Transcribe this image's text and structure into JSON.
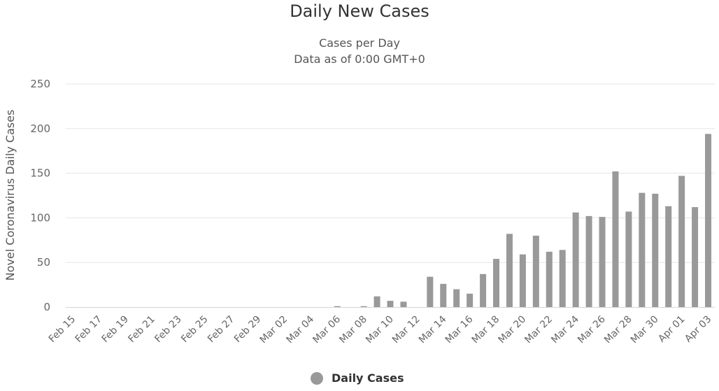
{
  "chart_data": {
    "type": "bar",
    "title": "Daily New Cases",
    "subtitle": [
      "Cases per Day",
      "Data as of 0:00 GMT+0"
    ],
    "ylabel": "Novel Coronavirus Daily Cases",
    "xlabel": "",
    "ylim": [
      0,
      250
    ],
    "yticks": [
      0,
      50,
      100,
      150,
      200,
      250
    ],
    "grid": true,
    "legend": "bottom-center",
    "colors": {
      "bar": "#999999",
      "grid": "#e6e6e6",
      "axis": "#ccd6eb"
    },
    "categories": [
      "Feb 15",
      "Feb 16",
      "Feb 17",
      "Feb 18",
      "Feb 19",
      "Feb 20",
      "Feb 21",
      "Feb 22",
      "Feb 23",
      "Feb 24",
      "Feb 25",
      "Feb 26",
      "Feb 27",
      "Feb 28",
      "Feb 29",
      "Mar 01",
      "Mar 02",
      "Mar 03",
      "Mar 04",
      "Mar 05",
      "Mar 06",
      "Mar 07",
      "Mar 08",
      "Mar 09",
      "Mar 10",
      "Mar 11",
      "Mar 12",
      "Mar 13",
      "Mar 14",
      "Mar 15",
      "Mar 16",
      "Mar 17",
      "Mar 18",
      "Mar 19",
      "Mar 20",
      "Mar 21",
      "Mar 22",
      "Mar 23",
      "Mar 24",
      "Mar 25",
      "Mar 26",
      "Mar 27",
      "Mar 28",
      "Mar 29",
      "Mar 30",
      "Mar 31",
      "Apr 01",
      "Apr 02",
      "Apr 03"
    ],
    "tick_labels": [
      "Feb 15",
      "Feb 17",
      "Feb 19",
      "Feb 21",
      "Feb 23",
      "Feb 25",
      "Feb 27",
      "Feb 29",
      "Mar 02",
      "Mar 04",
      "Mar 06",
      "Mar 08",
      "Mar 10",
      "Mar 12",
      "Mar 14",
      "Mar 16",
      "Mar 18",
      "Mar 20",
      "Mar 22",
      "Mar 24",
      "Mar 26",
      "Mar 28",
      "Mar 30",
      "Apr 01",
      "Apr 03"
    ],
    "series": [
      {
        "name": "Daily Cases",
        "values": [
          0,
          0,
          0,
          0,
          0,
          0,
          0,
          0,
          0,
          0,
          0,
          0,
          0,
          0,
          0,
          0,
          0,
          0,
          0,
          0,
          1,
          0,
          1,
          12,
          7,
          6,
          0,
          34,
          26,
          20,
          15,
          37,
          54,
          82,
          59,
          80,
          62,
          64,
          106,
          102,
          101,
          152,
          107,
          128,
          127,
          113,
          147,
          112,
          194
        ]
      }
    ]
  }
}
